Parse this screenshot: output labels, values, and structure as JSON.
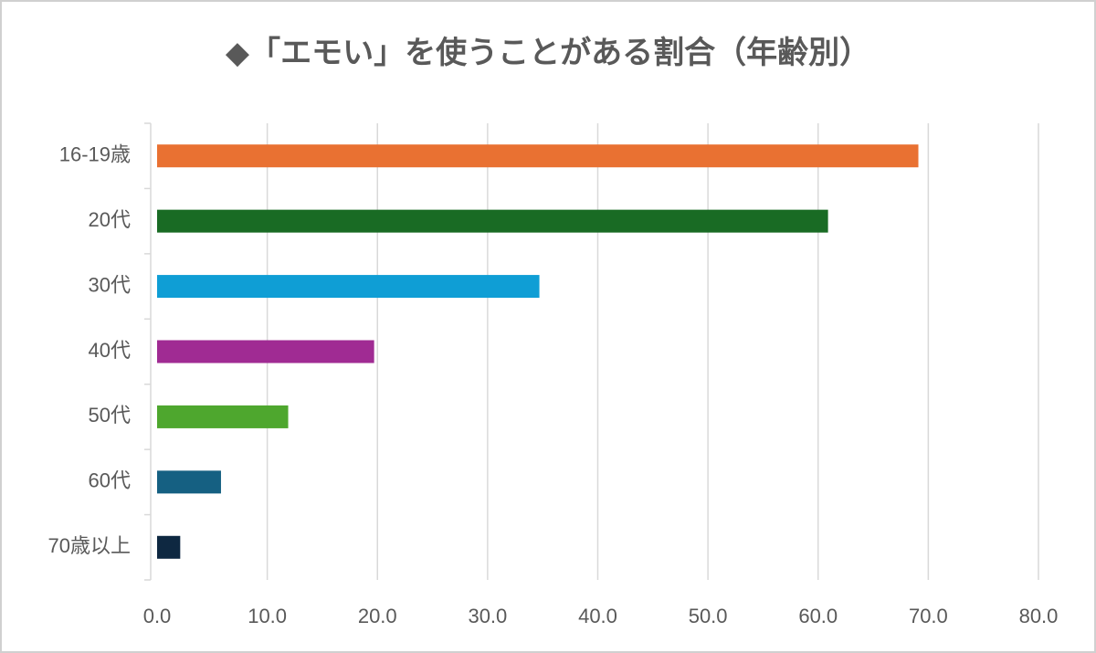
{
  "chart_data": {
    "type": "hbar",
    "title": "◆「エモい」を使うことがある割合（年齢別）",
    "categories": [
      "16-19歳",
      "20代",
      "30代",
      "40代",
      "50代",
      "60代",
      "70歳以上"
    ],
    "values": [
      69.1,
      60.9,
      34.7,
      19.7,
      11.9,
      5.8,
      2.1
    ],
    "colors": [
      "#e97132",
      "#196b24",
      "#0f9ed5",
      "#a02b93",
      "#4ea72e",
      "#156082",
      "#0e2841"
    ],
    "xlim": [
      0,
      80
    ],
    "xticks": [
      {
        "value": 0,
        "label": "0.0"
      },
      {
        "value": 10,
        "label": "10.0"
      },
      {
        "value": 20,
        "label": "20.0"
      },
      {
        "value": 30,
        "label": "30.0"
      },
      {
        "value": 40,
        "label": "40.0"
      },
      {
        "value": 50,
        "label": "50.0"
      },
      {
        "value": 60,
        "label": "60.0"
      },
      {
        "value": 70,
        "label": "70.0"
      },
      {
        "value": 80,
        "label": "80.0"
      }
    ],
    "grid": true
  }
}
